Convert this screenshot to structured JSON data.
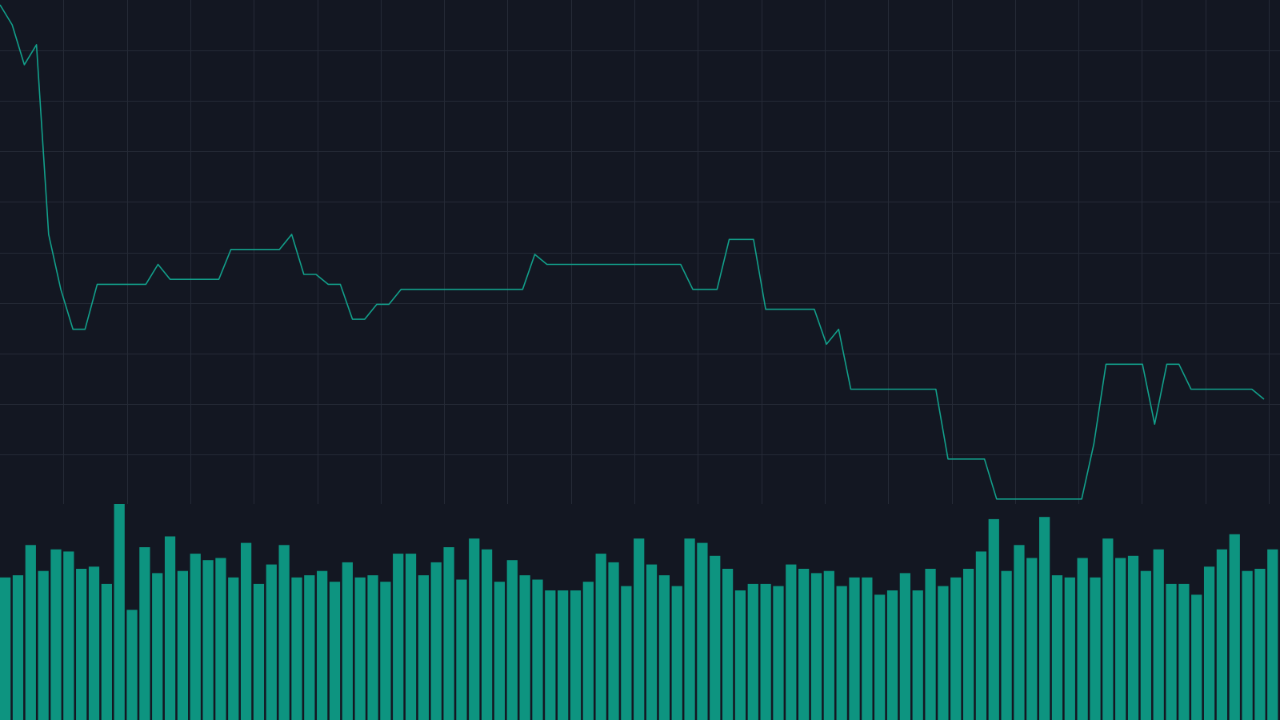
{
  "chart_data": {
    "type": "line",
    "panes": [
      "price",
      "volume"
    ],
    "grid": true,
    "colors": {
      "background": "#131722",
      "grid": "#252a36",
      "line": "#12a08b",
      "volume": "#0d9480"
    },
    "price": {
      "ylim": [
        0,
        100
      ],
      "values": [
        100,
        96,
        88,
        92,
        54,
        43,
        35,
        35,
        44,
        44,
        44,
        44,
        44,
        48,
        45,
        45,
        45,
        45,
        45,
        51,
        51,
        51,
        51,
        51,
        54,
        46,
        46,
        44,
        44,
        37,
        37,
        40,
        40,
        43,
        43,
        43,
        43,
        43,
        43,
        43,
        43,
        43,
        43,
        43,
        50,
        48,
        48,
        48,
        48,
        48,
        48,
        48,
        48,
        48,
        48,
        48,
        48,
        43,
        43,
        43,
        53,
        53,
        53,
        39,
        39,
        39,
        39,
        39,
        32,
        35,
        23,
        23,
        23,
        23,
        23,
        23,
        23,
        23,
        9,
        9,
        9,
        9,
        1,
        1,
        1,
        1,
        1,
        1,
        1,
        1,
        12,
        28,
        28,
        28,
        28,
        16,
        28,
        28,
        23,
        23,
        23,
        23,
        23,
        23,
        21
      ]
    },
    "volume": {
      "ylim": [
        0,
        100
      ],
      "values": [
        66,
        67,
        81,
        69,
        79,
        78,
        70,
        71,
        63,
        100,
        51,
        80,
        68,
        85,
        69,
        77,
        74,
        75,
        66,
        82,
        63,
        72,
        81,
        66,
        67,
        69,
        64,
        73,
        66,
        67,
        64,
        77,
        77,
        67,
        73,
        80,
        65,
        84,
        79,
        64,
        74,
        67,
        65,
        60,
        60,
        60,
        64,
        77,
        73,
        62,
        84,
        72,
        67,
        62,
        84,
        82,
        76,
        70,
        60,
        63,
        63,
        62,
        72,
        70,
        68,
        69,
        62,
        66,
        66,
        58,
        60,
        68,
        60,
        70,
        62,
        66,
        70,
        78,
        93,
        69,
        81,
        75,
        94,
        67,
        66,
        75,
        66,
        84,
        75,
        76,
        69,
        79,
        63,
        63,
        58,
        71,
        79,
        86,
        69,
        70,
        79
      ]
    }
  }
}
